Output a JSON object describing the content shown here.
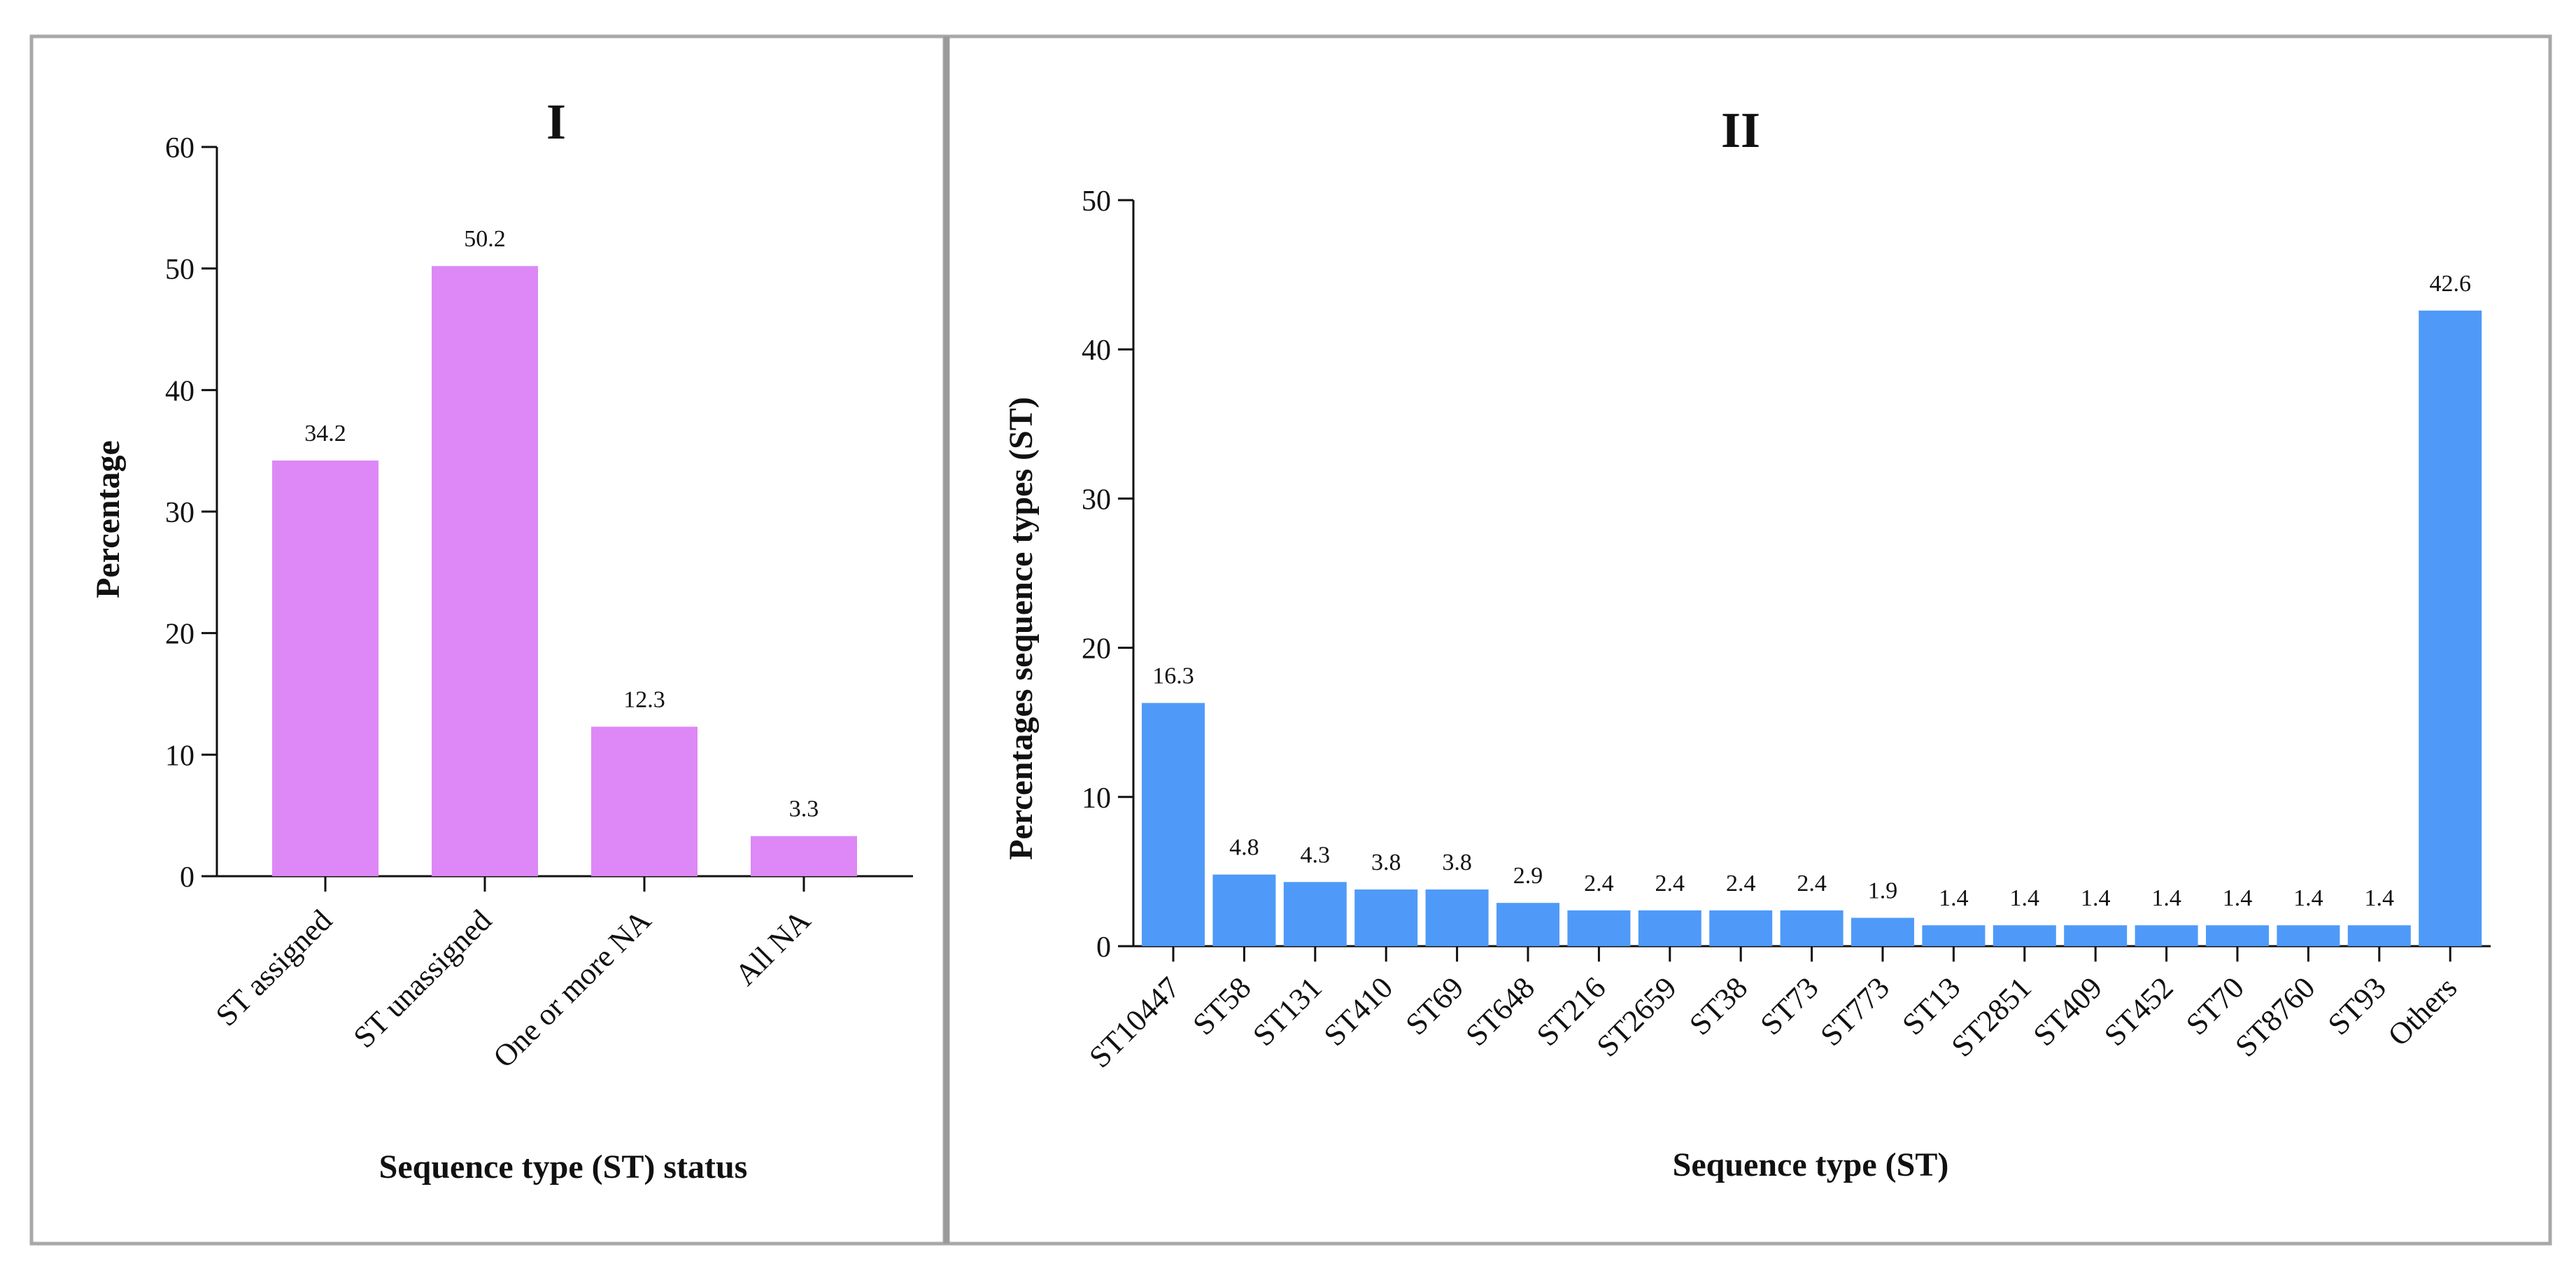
{
  "colors": {
    "panel1_bar": "#dd88f6",
    "panel2_bar": "#4f9af8",
    "panel_border": "#a8a8a8",
    "divider": "#9a9a9a",
    "axis": "#111111"
  },
  "chart_data": [
    {
      "type": "bar",
      "title": "I",
      "xlabel": "Sequence type (ST) status",
      "ylabel": "Percentage",
      "ylim": [
        0,
        60
      ],
      "yticks": [
        0,
        10,
        20,
        30,
        40,
        50,
        60
      ],
      "categories": [
        "ST assigned",
        "ST unassigned",
        "One or more NA",
        "All NA"
      ],
      "values": [
        34.2,
        50.2,
        12.3,
        3.3
      ],
      "data_labels": [
        "34.2",
        "50.2",
        "12.3",
        "3.3"
      ],
      "grid": false
    },
    {
      "type": "bar",
      "title": "II",
      "xlabel": "Sequence type (ST)",
      "ylabel": "Percentages sequence types (ST)",
      "ylim": [
        0,
        50
      ],
      "yticks": [
        0,
        10,
        20,
        30,
        40,
        50
      ],
      "categories": [
        "ST10447",
        "ST58",
        "ST131",
        "ST410",
        "ST69",
        "ST648",
        "ST216",
        "ST2659",
        "ST38",
        "ST73",
        "ST773",
        "ST13",
        "ST2851",
        "ST409",
        "ST452",
        "ST70",
        "ST8760",
        "ST93",
        "Others"
      ],
      "values": [
        16.3,
        4.8,
        4.3,
        3.8,
        3.8,
        2.9,
        2.4,
        2.4,
        2.4,
        2.4,
        1.9,
        1.4,
        1.4,
        1.4,
        1.4,
        1.4,
        1.4,
        1.4,
        42.6
      ],
      "data_labels": [
        "16.3",
        "4.8",
        "4.3",
        "3.8",
        "3.8",
        "2.9",
        "2.4",
        "2.4",
        "2.4",
        "2.4",
        "1.9",
        "1.4",
        "1.4",
        "1.4",
        "1.4",
        "1.4",
        "1.4",
        "1.4",
        "42.6"
      ],
      "grid": false
    }
  ]
}
